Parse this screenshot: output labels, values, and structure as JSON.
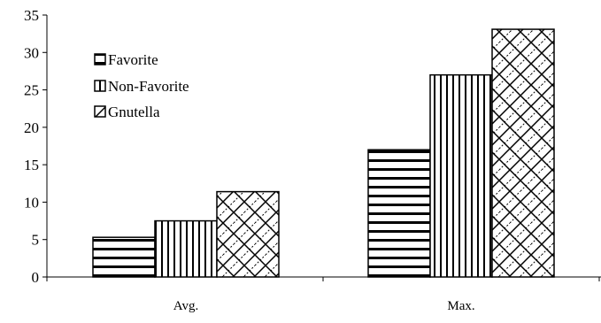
{
  "chart_data": {
    "type": "bar",
    "title": "",
    "xlabel": "",
    "ylabel": "",
    "categories": [
      "Avg.",
      "Max."
    ],
    "series": [
      {
        "name": "Favorite",
        "values": [
          5.3,
          17
        ],
        "pattern": "horizontal-stripes"
      },
      {
        "name": "Non-Favorite",
        "values": [
          7.5,
          27
        ],
        "pattern": "vertical-stripes"
      },
      {
        "name": "Gnutella",
        "values": [
          11.4,
          33.1
        ],
        "pattern": "diagonal-cross"
      }
    ],
    "ylim": [
      0,
      35
    ],
    "yticks": [
      "0",
      "5",
      "10",
      "15",
      "20",
      "25",
      "30",
      "35"
    ],
    "grid": false,
    "legend_position": "top-left",
    "colors": {
      "ink": "#000000",
      "fill": "#ffffff"
    }
  }
}
